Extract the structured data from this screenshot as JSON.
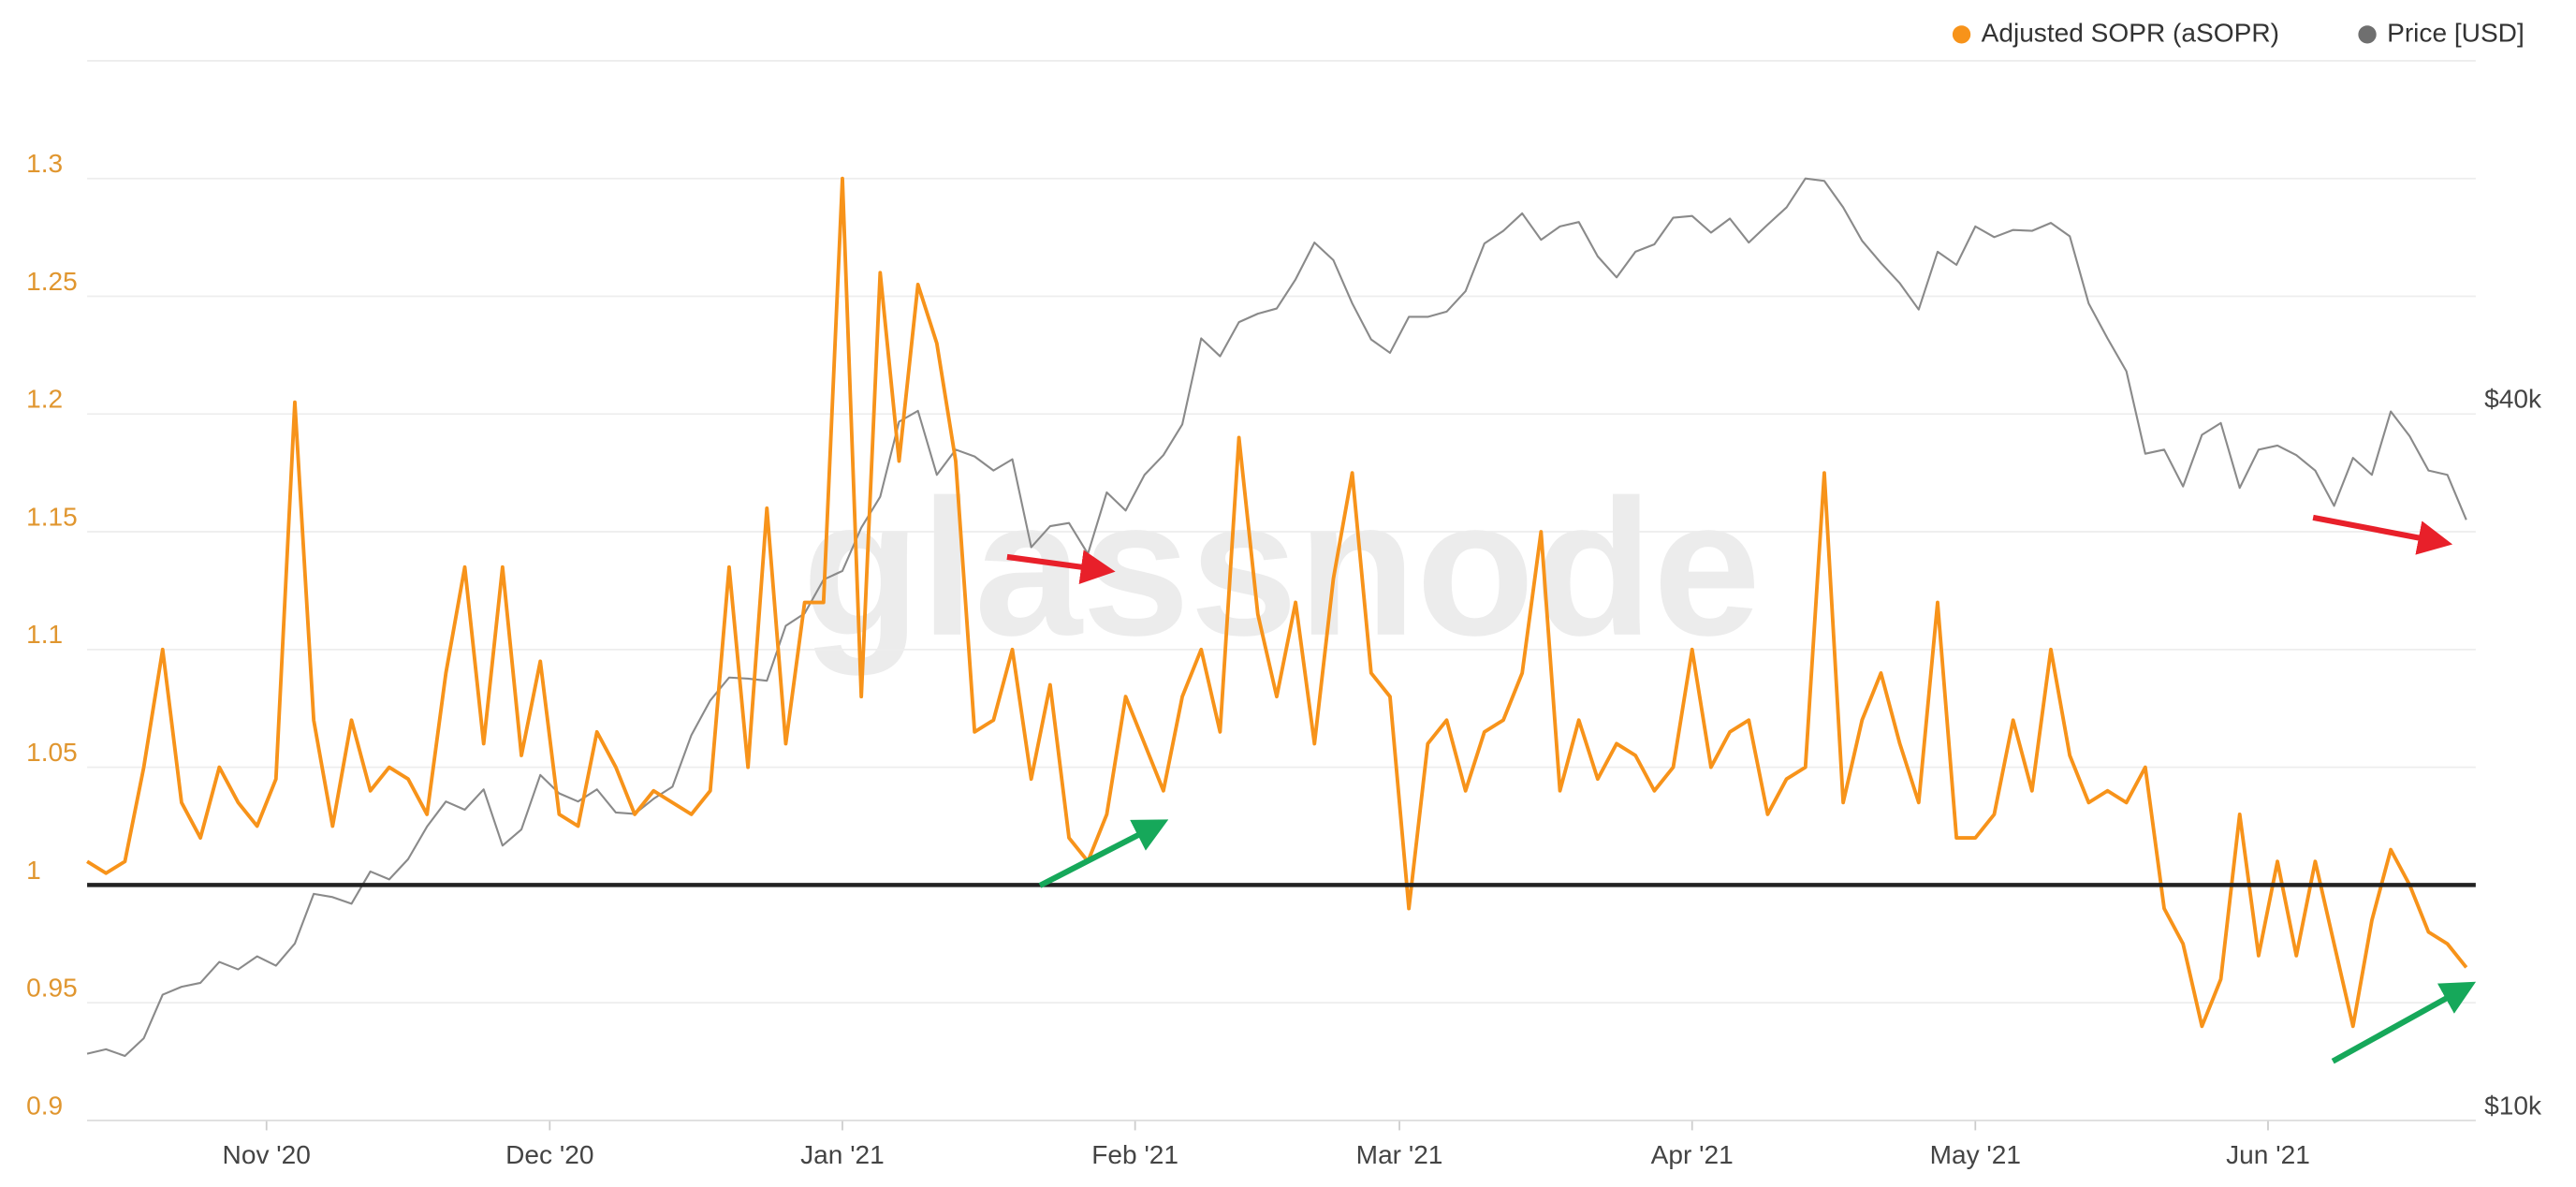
{
  "chart_data": {
    "type": "line",
    "watermark": "glassnode",
    "x": [
      0,
      2,
      4,
      6,
      8,
      10,
      12,
      14,
      16,
      18,
      20,
      22,
      24,
      26,
      28,
      30,
      32,
      34,
      36,
      38,
      40,
      42,
      44,
      46,
      48,
      50,
      52,
      54,
      56,
      58,
      60,
      62,
      64,
      66,
      68,
      70,
      72,
      74,
      76,
      78,
      80,
      82,
      84,
      86,
      88,
      90,
      92,
      94,
      96,
      98,
      100,
      102,
      104,
      106,
      108,
      110,
      112,
      114,
      116,
      118,
      120,
      122,
      124,
      126,
      128,
      130,
      132,
      134,
      136,
      138,
      140,
      142,
      144,
      146,
      148,
      150,
      152,
      154,
      156,
      158,
      160,
      162,
      164,
      166,
      168,
      170,
      172,
      174,
      176,
      178,
      180,
      182,
      184,
      186,
      188,
      190,
      192,
      194,
      196,
      198,
      200,
      202,
      204,
      206,
      208,
      210,
      212,
      214,
      216,
      218,
      220,
      222,
      224,
      226,
      228,
      230,
      232,
      234,
      236,
      238,
      240,
      242,
      244,
      246,
      248,
      250,
      252
    ],
    "xlim": [
      0,
      253
    ],
    "xticks": [
      {
        "value": 19,
        "label": "Nov '20"
      },
      {
        "value": 49,
        "label": "Dec '20"
      },
      {
        "value": 80,
        "label": "Jan '21"
      },
      {
        "value": 111,
        "label": "Feb '21"
      },
      {
        "value": 139,
        "label": "Mar '21"
      },
      {
        "value": 170,
        "label": "Apr '21"
      },
      {
        "value": 200,
        "label": "May '21"
      },
      {
        "value": 231,
        "label": "Jun '21"
      }
    ],
    "ylim": [
      0.9,
      1.35
    ],
    "yticks": [
      0.9,
      0.95,
      1,
      1.05,
      1.1,
      1.15,
      1.2,
      1.25,
      1.3
    ],
    "y2lim": [
      10000,
      80000
    ],
    "y2log": true,
    "y2ticks": [
      {
        "value": 10000,
        "label": "$10k"
      },
      {
        "value": 40000,
        "label": "$40k"
      }
    ],
    "hline": 1,
    "grid": true,
    "legend": "top-right",
    "series": [
      {
        "name": "Adjusted SOPR (aSOPR)",
        "color": "#f7931a",
        "values": [
          1.01,
          1.005,
          1.01,
          1.05,
          1.1,
          1.035,
          1.02,
          1.05,
          1.035,
          1.025,
          1.045,
          1.205,
          1.07,
          1.025,
          1.07,
          1.04,
          1.05,
          1.045,
          1.03,
          1.09,
          1.135,
          1.06,
          1.135,
          1.055,
          1.095,
          1.03,
          1.025,
          1.065,
          1.05,
          1.03,
          1.04,
          1.035,
          1.03,
          1.04,
          1.135,
          1.05,
          1.16,
          1.06,
          1.12,
          1.12,
          1.3,
          1.08,
          1.26,
          1.18,
          1.255,
          1.23,
          1.18,
          1.065,
          1.07,
          1.1,
          1.045,
          1.085,
          1.02,
          1.01,
          1.03,
          1.08,
          1.06,
          1.04,
          1.08,
          1.1,
          1.065,
          1.19,
          1.115,
          1.08,
          1.12,
          1.06,
          1.13,
          1.175,
          1.09,
          1.08,
          0.99,
          1.06,
          1.07,
          1.04,
          1.065,
          1.07,
          1.09,
          1.15,
          1.04,
          1.07,
          1.045,
          1.06,
          1.055,
          1.04,
          1.05,
          1.1,
          1.05,
          1.065,
          1.07,
          1.03,
          1.045,
          1.05,
          1.175,
          1.035,
          1.07,
          1.09,
          1.06,
          1.035,
          1.12,
          1.02,
          1.02,
          1.03,
          1.07,
          1.04,
          1.1,
          1.055,
          1.035,
          1.04,
          1.035,
          1.05,
          0.99,
          0.975,
          0.94,
          0.96,
          1.03,
          0.97,
          1.01,
          0.97,
          1.01,
          0.975,
          0.94,
          0.985,
          1.015,
          1.0,
          0.98,
          0.975,
          0.965
        ]
      },
      {
        "name": "Price [USD]",
        "color": "#8a8a8a",
        "axis": "y2",
        "values": [
          11400,
          11500,
          11350,
          11750,
          12800,
          13000,
          13100,
          13650,
          13450,
          13800,
          13550,
          14150,
          15600,
          15500,
          15300,
          16300,
          16050,
          16700,
          17800,
          18700,
          18400,
          19150,
          17150,
          17700,
          19700,
          19000,
          18700,
          19150,
          18300,
          18250,
          18800,
          19250,
          21300,
          22800,
          23850,
          23800,
          23700,
          26400,
          27050,
          28900,
          29400,
          32000,
          34000,
          39400,
          40250,
          35500,
          37300,
          36800,
          35800,
          36600,
          30800,
          32100,
          32300,
          30400,
          34300,
          33100,
          35500,
          36900,
          39200,
          46400,
          44800,
          47900,
          48700,
          49200,
          52100,
          56000,
          54100,
          49700,
          46300,
          45100,
          48400,
          48400,
          48900,
          50900,
          55900,
          57300,
          59300,
          56300,
          57800,
          58300,
          54500,
          52300,
          55000,
          55800,
          58800,
          59000,
          57100,
          58700,
          56000,
          58000,
          60000,
          63500,
          63200,
          60000,
          56200,
          53800,
          51700,
          49100,
          55000,
          53600,
          57800,
          56600,
          57400,
          57300,
          58200,
          56700,
          49700,
          46400,
          43500,
          37000,
          37300,
          34700,
          38400,
          39300,
          34600,
          37300,
          37600,
          36900,
          35800,
          33400,
          36700,
          35500,
          40200,
          38300,
          35800,
          35500,
          32500
        ]
      }
    ]
  }
}
